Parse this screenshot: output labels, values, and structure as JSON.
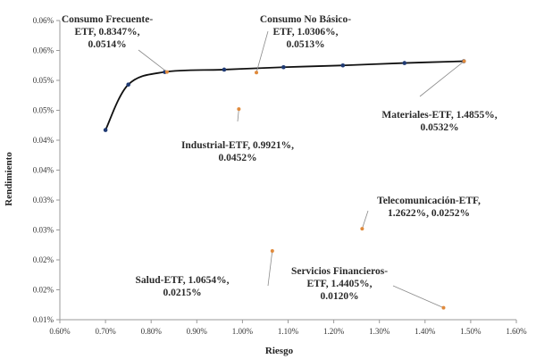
{
  "chart_data": {
    "type": "scatter",
    "title": "",
    "xlabel": "Riesgo",
    "ylabel": "Rendimiento",
    "xlim": [
      0.6,
      1.6
    ],
    "ylim": [
      0.01,
      0.06
    ],
    "x_ticks": [
      "0.60%",
      "0.70%",
      "0.80%",
      "0.90%",
      "1.00%",
      "1.10%",
      "1.20%",
      "1.30%",
      "1.40%",
      "1.50%",
      "1.60%"
    ],
    "y_ticks": [
      "0.01%",
      "0.02%",
      "0.02%",
      "0.03%",
      "0.03%",
      "0.04%",
      "0.04%",
      "0.05%",
      "0.05%",
      "0.06%",
      "0.06%"
    ],
    "grid": false,
    "series": [
      {
        "values": [
          {
            "x": 0.7,
            "y": 0.0417
          },
          {
            "x": 0.75,
            "y": 0.0493
          },
          {
            "x": 0.83,
            "y": 0.0514
          },
          {
            "x": 0.96,
            "y": 0.0518
          },
          {
            "x": 1.09,
            "y": 0.0522
          },
          {
            "x": 1.22,
            "y": 0.0525
          },
          {
            "x": 1.355,
            "y": 0.0529
          },
          {
            "x": 1.485,
            "y": 0.0532
          }
        ],
        "color": "#1f3a73"
      },
      {
        "values": [
          {
            "x": 0.8347,
            "y": 0.0514,
            "label": [
              "Consumo Frecuente-",
              "ETF, 0.8347%,",
              "0.0514%"
            ]
          },
          {
            "x": 1.0306,
            "y": 0.0513,
            "label": [
              "Consumo No Básico-",
              "ETF, 1.0306%,",
              "0.0513%"
            ]
          },
          {
            "x": 0.9921,
            "y": 0.0452,
            "label": [
              "Industrial-ETF, 0.9921%,",
              "0.0452%"
            ]
          },
          {
            "x": 1.4855,
            "y": 0.0532,
            "label": [
              "Materiales-ETF, 1.4855%,",
              "0.0532%"
            ]
          },
          {
            "x": 1.2622,
            "y": 0.0252,
            "label": [
              "Telecomunicación-ETF,",
              "1.2622%, 0.0252%"
            ]
          },
          {
            "x": 1.0654,
            "y": 0.0215,
            "label": [
              "Salud-ETF, 1.0654%,",
              "0.0215%"
            ]
          },
          {
            "x": 1.4405,
            "y": 0.012,
            "label": [
              "Servicios Financieros-",
              "ETF, 1.4405%,",
              "0.0120%"
            ]
          }
        ],
        "color": "#e08a3c"
      }
    ],
    "frontier_color": "#111111"
  }
}
